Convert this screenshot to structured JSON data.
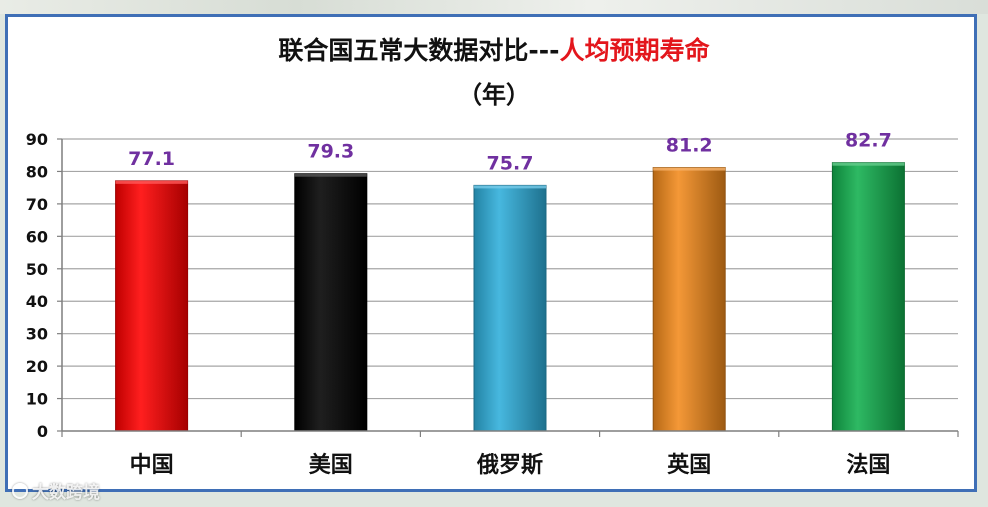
{
  "chart_data": {
    "type": "bar",
    "title_black": "联合国五常大数据对比---",
    "title_red": "人均预期寿命",
    "unit": "（年）",
    "categories": [
      "中国",
      "美国",
      "俄罗斯",
      "英国",
      "法国"
    ],
    "values": [
      77.1,
      79.3,
      75.7,
      81.2,
      82.7
    ],
    "value_labels": [
      "77.1",
      "79.3",
      "75.7",
      "81.2",
      "82.7"
    ],
    "colors": [
      "#ff0000",
      "#000000",
      "#2eaedb",
      "#f28a1c",
      "#12b04e"
    ],
    "ylim": [
      0,
      90
    ],
    "yticks": [
      0,
      10,
      20,
      30,
      40,
      50,
      60,
      70,
      80,
      90
    ],
    "grid": true,
    "label_color": "#7030a0"
  },
  "watermark": "大数跨境",
  "watermark_icon": "weibo-logo-icon"
}
